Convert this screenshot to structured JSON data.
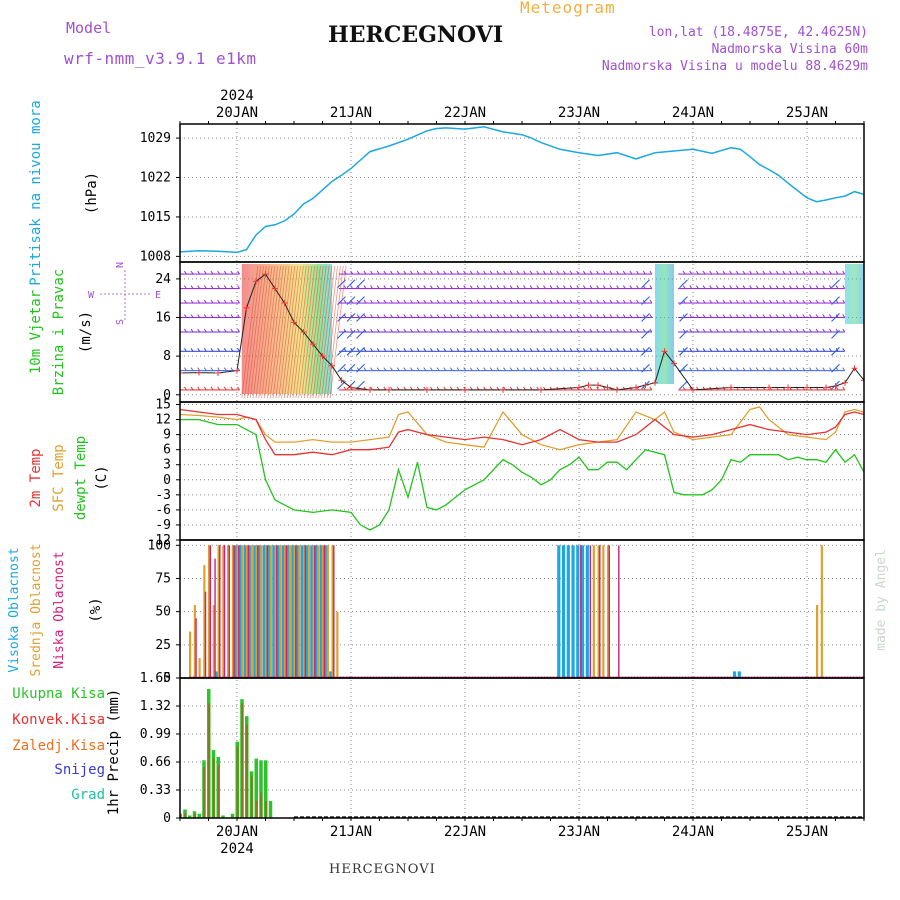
{
  "header": {
    "model_label": "Model",
    "model_name": "wrf-nmm_v3.9.1 e1km",
    "meteogram_label": "Meteogram",
    "station": "HERCEGNOVI",
    "lonlat": "lon,lat (18.4875E, 42.4625N)",
    "elevation": "Nadmorska Visina 60m",
    "model_elevation": "Nadmorska Visina u modelu 88.4629m",
    "footer_station": "HERCEGNOVI",
    "signature": "made by Angel"
  },
  "colors": {
    "pressure": "#1ba8e0",
    "temp2m": "#e83232",
    "sfc_temp": "#e0a030",
    "dewpoint": "#22c41c",
    "high_cloud": "#1ba8e0",
    "mid_cloud": "#e0a030",
    "low_cloud": "#d0207a",
    "total_precip": "#2bc42b",
    "conv_precip": "#e83232",
    "freezing_precip": "#f07020",
    "snow": "#3a3ad8",
    "hail": "#20c0a0",
    "header_purple": "#a050d0",
    "header_orange": "#f0b040"
  },
  "chart_data": [
    {
      "type": "line",
      "panel": "pressure",
      "ylabel_title": "Pritisak na nivou mora",
      "ylabel_unit": "(hPa)",
      "x_ticks": [
        "20JAN",
        "21JAN",
        "22JAN",
        "23JAN",
        "24JAN",
        "25JAN"
      ],
      "year_label": "2024",
      "yticks": [
        1008,
        1015,
        1022,
        1029
      ],
      "ylim": [
        1007,
        1031.5
      ],
      "xlim_hours": [
        -12,
        132
      ],
      "grid": true,
      "x_hours": [
        -12,
        -8,
        -4,
        0,
        2,
        4,
        6,
        8,
        10,
        12,
        14,
        16,
        18,
        20,
        22,
        24,
        26,
        28,
        32,
        36,
        40,
        42,
        44,
        48,
        52,
        56,
        60,
        62,
        64,
        68,
        72,
        76,
        80,
        84,
        88,
        92,
        96,
        100,
        104,
        106,
        108,
        110,
        112,
        114,
        116,
        118,
        120,
        122,
        124,
        126,
        128,
        130,
        132
      ],
      "values": [
        1008.8,
        1009.0,
        1008.9,
        1008.7,
        1009.2,
        1011.8,
        1013.3,
        1013.6,
        1014.3,
        1015.5,
        1017.3,
        1018.3,
        1019.8,
        1021.3,
        1022.4,
        1023.6,
        1025.1,
        1026.6,
        1027.6,
        1028.8,
        1030.3,
        1030.7,
        1030.8,
        1030.6,
        1031.0,
        1030.1,
        1029.6,
        1029.0,
        1028.2,
        1027.0,
        1026.4,
        1025.9,
        1026.4,
        1025.3,
        1026.4,
        1026.7,
        1027.0,
        1026.3,
        1027.3,
        1027.0,
        1025.7,
        1024.3,
        1023.4,
        1022.4,
        1021.0,
        1019.7,
        1018.4,
        1017.7,
        1018.0,
        1018.4,
        1018.7,
        1019.5,
        1019.0
      ]
    },
    {
      "type": "scatter",
      "panel": "wind",
      "ylabel_title": "10m Vjetar",
      "ylabel_sub": "Brzina i Pravac",
      "ylabel_unit": "(m/s)",
      "compass_n": "N",
      "compass_w": "W",
      "compass_e": "E",
      "compass_s": "S",
      "yticks": [
        0,
        8,
        16,
        24
      ],
      "ylim": [
        -1.5,
        27.5
      ],
      "grid": true,
      "band_levels": [
        1,
        5,
        9,
        13,
        16,
        19,
        22,
        25
      ],
      "speed_x_hours": [
        -12,
        -8,
        -4,
        0,
        2,
        4,
        6,
        8,
        10,
        12,
        14,
        16,
        18,
        20,
        22,
        24,
        28,
        32,
        40,
        48,
        56,
        64,
        72,
        74,
        76,
        78,
        80,
        84,
        86,
        88,
        90,
        92,
        96,
        104,
        112,
        116,
        120,
        124,
        126,
        128,
        130,
        132
      ],
      "speed_values": [
        4.5,
        4.6,
        4.5,
        5.0,
        18.0,
        23.5,
        25.0,
        22.0,
        19.0,
        15.0,
        13.0,
        10.5,
        8.0,
        6.0,
        3.0,
        1.5,
        1.0,
        1.0,
        1.0,
        1.0,
        1.0,
        1.0,
        1.5,
        2.0,
        2.0,
        1.5,
        1.0,
        1.5,
        2.0,
        2.5,
        9.0,
        6.5,
        1.0,
        1.5,
        1.5,
        1.5,
        1.5,
        1.5,
        1.8,
        2.5,
        5.5,
        3.0
      ]
    },
    {
      "type": "line",
      "panel": "temperature",
      "ylabel_t2m": "2m Temp",
      "ylabel_sfc": "SFC Temp",
      "ylabel_dew": "dewpt Temp",
      "ylabel_unit": "(C)",
      "yticks": [
        -12,
        -9,
        -6,
        -3,
        0,
        3,
        6,
        9,
        12,
        15
      ],
      "ylim": [
        -12,
        15.5
      ],
      "grid": true,
      "series": [
        {
          "name": "2m Temp",
          "x": [
            -12,
            -8,
            -4,
            0,
            2,
            4,
            6,
            8,
            12,
            16,
            20,
            24,
            28,
            32,
            34,
            36,
            40,
            44,
            48,
            52,
            56,
            60,
            64,
            68,
            72,
            76,
            80,
            84,
            88,
            92,
            96,
            100,
            104,
            108,
            112,
            116,
            120,
            124,
            126,
            128,
            130,
            132
          ],
          "y": [
            14.0,
            13.5,
            13.0,
            13.0,
            12.5,
            12.0,
            8.0,
            5.0,
            5.0,
            5.5,
            5.0,
            6.0,
            6.0,
            6.5,
            9.5,
            10.0,
            9.0,
            8.5,
            8.0,
            8.5,
            8.0,
            7.0,
            8.0,
            10.0,
            8.0,
            7.5,
            7.5,
            9.0,
            12.0,
            9.0,
            8.5,
            9.0,
            10.0,
            11.0,
            10.0,
            9.5,
            9.0,
            9.5,
            10.5,
            13.0,
            13.5,
            13.0
          ]
        },
        {
          "name": "SFC Temp",
          "x": [
            -12,
            -8,
            -4,
            0,
            2,
            4,
            6,
            8,
            12,
            16,
            20,
            24,
            28,
            32,
            34,
            36,
            40,
            44,
            48,
            52,
            56,
            60,
            64,
            68,
            72,
            76,
            80,
            84,
            88,
            90,
            92,
            96,
            100,
            104,
            108,
            110,
            112,
            116,
            120,
            124,
            126,
            128,
            130,
            132
          ],
          "y": [
            13.0,
            12.8,
            12.5,
            12.0,
            12.5,
            12.0,
            9.0,
            7.5,
            7.5,
            8.0,
            7.5,
            7.5,
            8.0,
            8.5,
            13.0,
            13.5,
            9.0,
            7.5,
            7.0,
            6.5,
            13.5,
            9.0,
            7.0,
            6.0,
            7.0,
            7.5,
            8.0,
            13.5,
            12.0,
            13.5,
            9.5,
            8.0,
            8.5,
            9.0,
            14.0,
            14.5,
            12.0,
            9.0,
            8.5,
            8.0,
            9.5,
            13.5,
            14.0,
            13.5
          ]
        },
        {
          "name": "dewpt Temp",
          "x": [
            -12,
            -8,
            -4,
            0,
            2,
            4,
            6,
            8,
            10,
            12,
            16,
            20,
            24,
            26,
            28,
            30,
            32,
            34,
            36,
            38,
            40,
            42,
            44,
            46,
            48,
            50,
            52,
            54,
            56,
            58,
            60,
            62,
            64,
            66,
            68,
            70,
            72,
            74,
            76,
            78,
            80,
            82,
            84,
            86,
            88,
            90,
            92,
            94,
            96,
            98,
            100,
            102,
            104,
            106,
            108,
            110,
            112,
            114,
            116,
            118,
            120,
            122,
            124,
            126,
            128,
            130,
            132
          ],
          "y": [
            12.0,
            12.0,
            11.0,
            11.0,
            10.0,
            9.0,
            0.0,
            -4.0,
            -5.0,
            -6.0,
            -6.5,
            -6.0,
            -6.5,
            -9.0,
            -10.0,
            -9.0,
            -6.0,
            2.0,
            -3.5,
            3.5,
            -5.5,
            -6.0,
            -5.0,
            -3.5,
            -2.0,
            -1.0,
            0.0,
            2.0,
            4.0,
            3.0,
            1.5,
            0.5,
            -1.0,
            0.0,
            2.0,
            3.0,
            4.5,
            2.0,
            2.0,
            3.5,
            3.5,
            2.0,
            4.0,
            6.0,
            5.5,
            5.0,
            -2.5,
            -3.0,
            -3.0,
            -3.0,
            -2.0,
            0.0,
            4.0,
            3.5,
            5.0,
            5.0,
            5.0,
            5.0,
            4.0,
            4.5,
            4.0,
            4.0,
            3.5,
            6.0,
            3.5,
            5.0,
            1.5
          ]
        }
      ]
    },
    {
      "type": "bar",
      "panel": "clouds",
      "ylabel_high": "Visoka Oblacnost",
      "ylabel_mid": "Srednja Oblacnost",
      "ylabel_low": "Niska Oblacnost",
      "ylabel_unit": "(%)",
      "yticks": [
        0,
        25,
        50,
        75,
        100
      ],
      "ylim": [
        0,
        104
      ],
      "grid": true,
      "series": [
        {
          "name": "Visoka Oblacnost",
          "x": [
            -4,
            0,
            1,
            2,
            3,
            4,
            5,
            6,
            7,
            8,
            9,
            10,
            11,
            12,
            13,
            14,
            15,
            16,
            17,
            18,
            19,
            20,
            68,
            69,
            70,
            71,
            72,
            73,
            74,
            105,
            106
          ],
          "y": [
            5,
            100,
            100,
            100,
            100,
            100,
            100,
            100,
            100,
            100,
            100,
            100,
            100,
            100,
            100,
            100,
            100,
            100,
            100,
            100,
            100,
            5,
            100,
            100,
            100,
            100,
            100,
            100,
            100,
            5,
            5
          ]
        },
        {
          "name": "Srednja Oblacnost",
          "x": [
            -10,
            -9,
            -8,
            -7,
            -6,
            -5,
            -4,
            -3,
            -2,
            -1,
            0,
            1,
            2,
            3,
            4,
            5,
            6,
            7,
            8,
            9,
            10,
            11,
            12,
            13,
            14,
            15,
            16,
            17,
            18,
            19,
            20,
            21,
            75,
            76,
            77,
            78,
            122,
            123
          ],
          "y": [
            35,
            55,
            15,
            85,
            100,
            55,
            100,
            100,
            100,
            100,
            100,
            100,
            100,
            100,
            100,
            100,
            100,
            100,
            100,
            100,
            100,
            100,
            100,
            100,
            100,
            100,
            100,
            100,
            100,
            100,
            100,
            50,
            100,
            100,
            100,
            100,
            55,
            100
          ]
        },
        {
          "name": "Niska Oblacnost",
          "x": [
            -9,
            -7,
            -6,
            -5,
            -4,
            -3,
            -2,
            -1,
            0,
            2,
            4,
            6,
            8,
            10,
            12,
            14,
            16,
            18,
            20,
            72,
            74,
            76,
            78,
            80
          ],
          "y": [
            45,
            65,
            100,
            90,
            100,
            100,
            100,
            100,
            100,
            100,
            100,
            100,
            100,
            100,
            100,
            100,
            100,
            100,
            100,
            100,
            100,
            100,
            100,
            100
          ]
        }
      ]
    },
    {
      "type": "bar",
      "panel": "precipitation",
      "ylabel_unit": "1hr Precip (mm)",
      "legend": [
        "Ukupna Kisa",
        "Konvek.Kisa",
        "Zaledj.Kisa",
        "Snijeg",
        "Grad"
      ],
      "yticks": [
        0,
        0.33,
        0.66,
        0.99,
        1.32,
        1.65
      ],
      "ytick_labels": [
        "0",
        "0.33",
        "0.66",
        "0.99",
        "1.32",
        "1.65"
      ],
      "ylim": [
        0,
        1.65
      ],
      "grid": true,
      "series": [
        {
          "name": "Ukupna Kisa",
          "x": [
            -12,
            -11,
            -10,
            -9,
            -8,
            -7,
            -6,
            -5,
            -4,
            -3,
            -2,
            -1,
            0,
            1,
            2,
            3,
            4,
            5,
            6,
            7,
            8,
            9,
            10,
            11
          ],
          "y": [
            0.05,
            0.1,
            0.03,
            0.08,
            0.05,
            0.68,
            1.52,
            0.8,
            0.72,
            0.03,
            0.0,
            0.05,
            0.9,
            1.4,
            1.2,
            0.55,
            0.7,
            0.68,
            0.68,
            0.2,
            0.0,
            0.0,
            0.0,
            0.0
          ]
        },
        {
          "name": "Konvek.Kisa",
          "x": [
            -11,
            -9,
            -7,
            -6,
            -5,
            -4,
            0,
            1,
            2,
            3,
            4,
            5,
            6
          ],
          "y": [
            0.06,
            0.05,
            0.6,
            1.35,
            0.7,
            0.62,
            0.85,
            1.35,
            1.1,
            0.5,
            0.2,
            0.3,
            0.2
          ]
        }
      ]
    }
  ]
}
